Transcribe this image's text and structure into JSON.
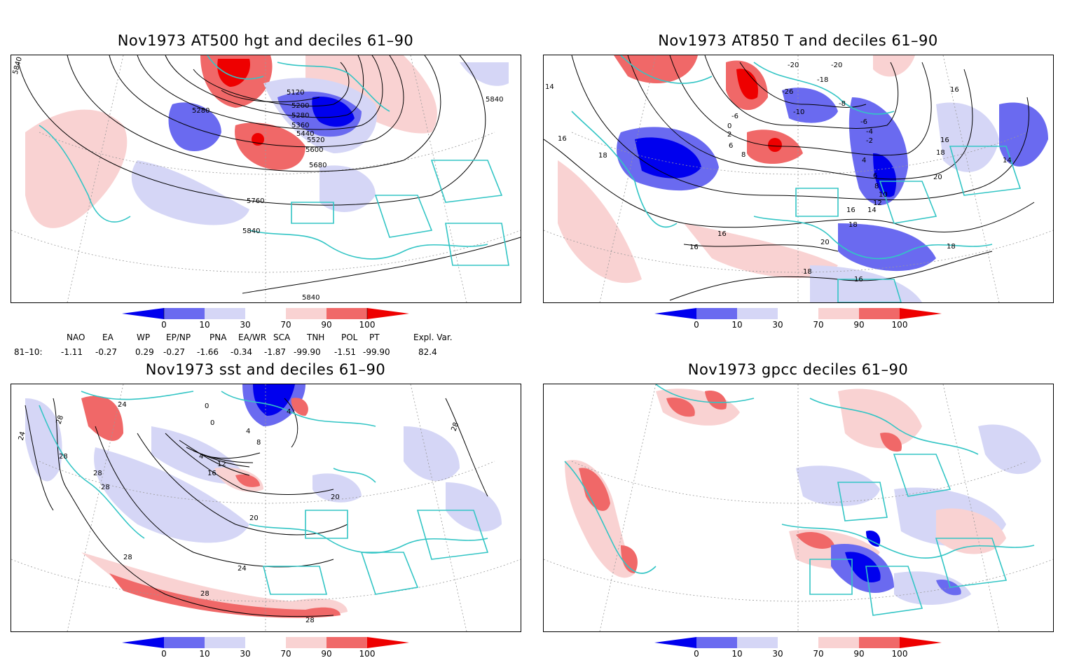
{
  "colors": {
    "deep_blue": "#0000ee",
    "mid_blue": "#6a6af0",
    "light_blue": "#d5d6f6",
    "light_red": "#f9d2d2",
    "mid_red": "#f06868",
    "deep_red": "#ee0000",
    "coast": "#33c5c5",
    "contour": "#000000",
    "grid": "#999999"
  },
  "colorbar": {
    "labels": [
      "0",
      "10",
      "30",
      "70",
      "90",
      "100"
    ]
  },
  "panels": [
    {
      "title": "Nov1973 AT500 hgt and deciles 61–90",
      "contour_labels": [
        "5840",
        "5280",
        "5120",
        "5200",
        "5280",
        "5360",
        "5440",
        "5520",
        "5600",
        "5680",
        "5760",
        "5840",
        "5840",
        "5840"
      ]
    },
    {
      "title": "Nov1973 AT850 T and deciles 61–90",
      "contour_labels": [
        "14",
        "16",
        "18",
        "-20",
        "-20",
        "-26",
        "-18",
        "-10",
        "-8",
        "-6",
        "-6",
        "-4",
        "-2",
        "0",
        "2",
        "4",
        "6",
        "8",
        "6",
        "8",
        "10",
        "12",
        "14",
        "16",
        "16",
        "16",
        "18",
        "20",
        "20",
        "18",
        "18",
        "16",
        "16",
        "16",
        "18",
        "14"
      ]
    },
    {
      "title": "Nov1973 sst and deciles 61–90",
      "contour_labels": [
        "24",
        "28",
        "24",
        "28",
        "28",
        "28",
        "0",
        "0",
        "4",
        "4",
        "8",
        "12",
        "16",
        "4",
        "20",
        "20",
        "24",
        "28",
        "28",
        "28",
        "28"
      ]
    },
    {
      "title": "Nov1973 gpcc deciles 61–90",
      "contour_labels": []
    }
  ],
  "indices": {
    "headers": [
      "NAO",
      "EA",
      "WP",
      "EP/NP",
      "PNA",
      "EA/WR",
      "SCA",
      "TNH",
      "POL",
      "PT",
      "Expl. Var."
    ],
    "row_label": "81–10:",
    "values": [
      "-1.11",
      "-0.27",
      "0.29",
      "-0.27",
      "-1.66",
      "-0.34",
      "-1.87",
      "-99.90",
      "-1.51",
      "-99.90",
      "82.4"
    ]
  }
}
